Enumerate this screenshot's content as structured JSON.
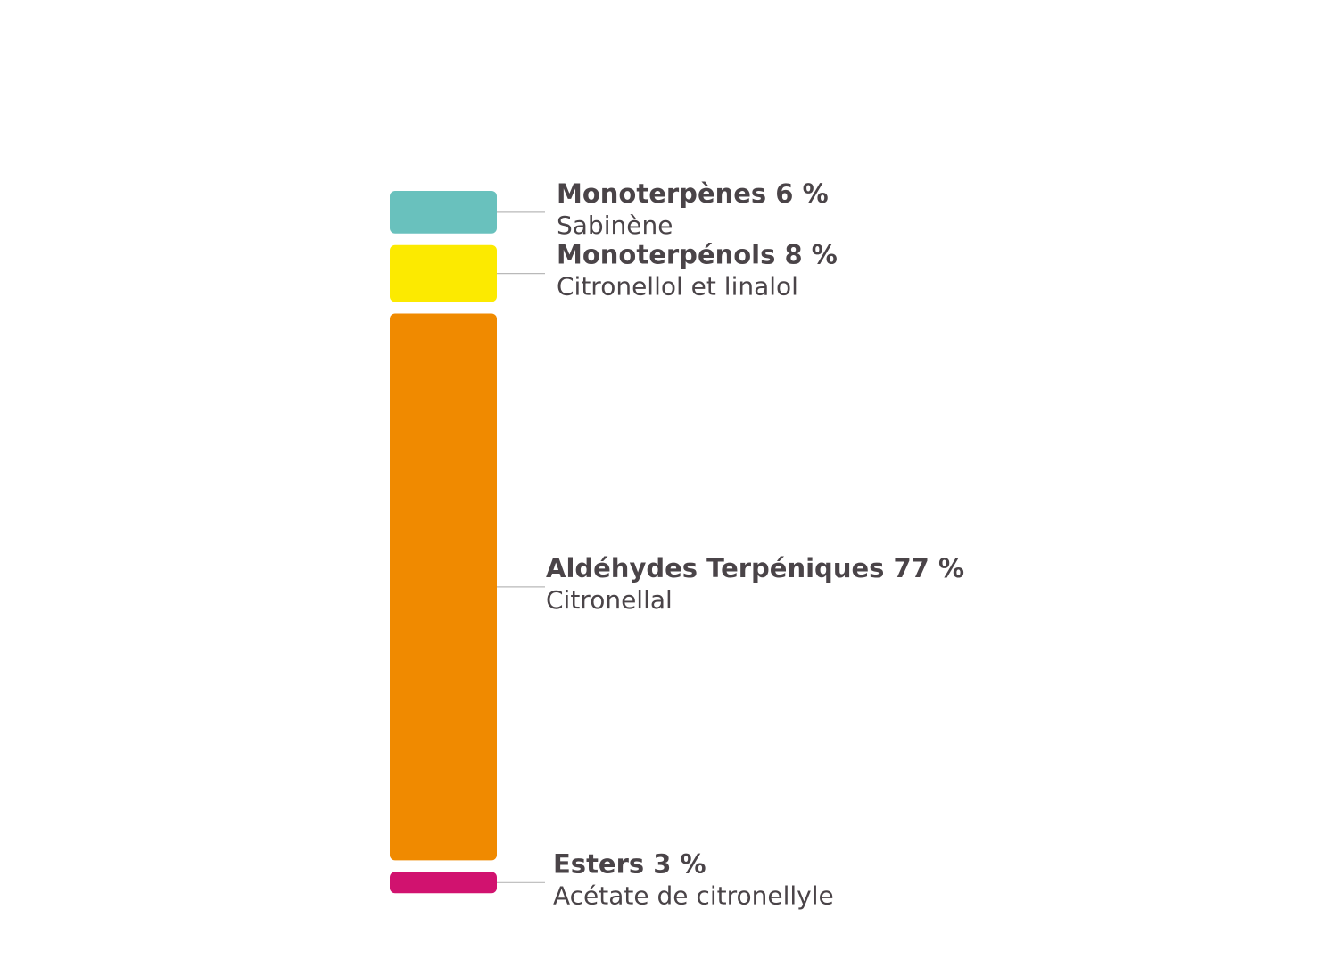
{
  "chart_data": {
    "type": "bar",
    "orientation": "stacked-vertical",
    "unit": "%",
    "categories": [
      "Monoterpènes",
      "Monoterpénols",
      "Aldéhydes Terpéniques",
      "Esters"
    ],
    "values": [
      6,
      8,
      77,
      3
    ],
    "segments": [
      {
        "name": "Monoterpènes",
        "value": 6,
        "value_label": "6 %",
        "description": "Sabinène",
        "color": "#69c1bd"
      },
      {
        "name": "Monoterpénols",
        "value": 8,
        "value_label": "8 %",
        "description": "Citronellol et linalol",
        "color": "#fcea00"
      },
      {
        "name": "Aldéhydes Terpéniques",
        "value": 77,
        "value_label": "77 %",
        "description": "Citronellal",
        "color": "#f08a00"
      },
      {
        "name": "Esters",
        "value": 3,
        "value_label": " 3 %",
        "description": "Acétate de citronellyle",
        "color": "#d1126f"
      }
    ],
    "colors": {
      "text": "#4a4448",
      "leader_line": "#b9b9b9"
    },
    "title": "",
    "xlabel": "",
    "ylabel": "",
    "grid": false,
    "legend": "right"
  }
}
